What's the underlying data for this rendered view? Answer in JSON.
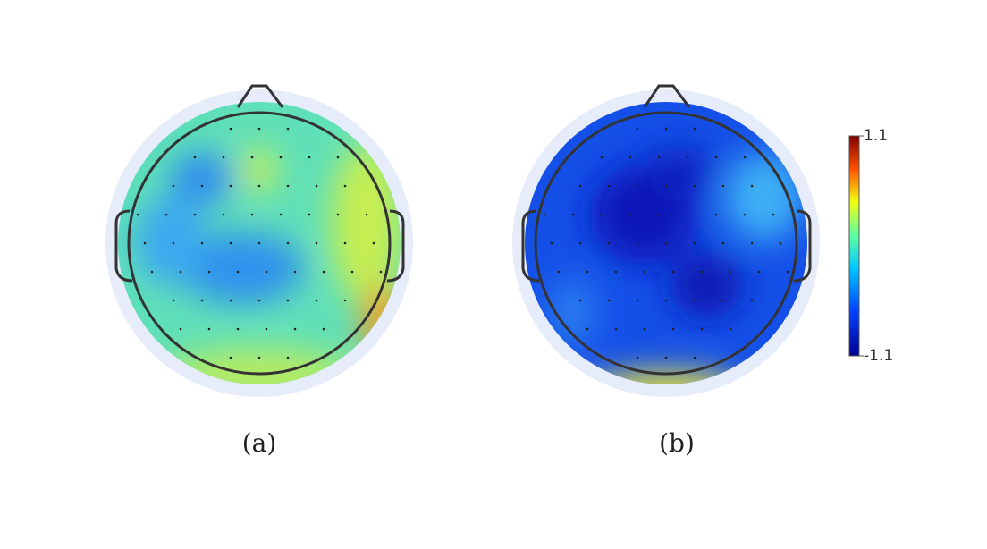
{
  "panels": [
    {
      "label": "(a)"
    },
    {
      "label": "(b)"
    }
  ],
  "colorbar": {
    "lim": [
      -1.1,
      1.1
    ],
    "ticks": [
      -1.1,
      1.1
    ]
  }
}
